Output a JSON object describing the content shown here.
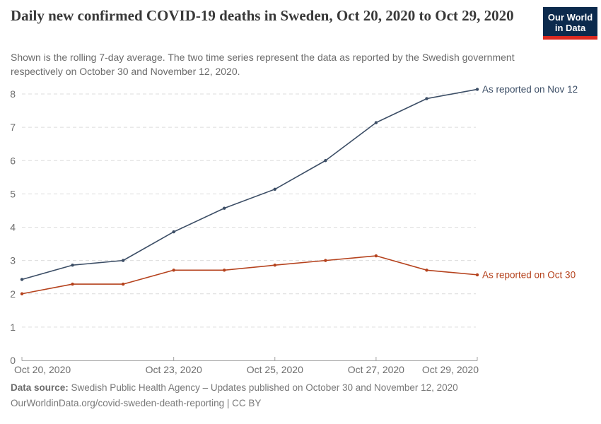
{
  "header": {
    "title": "Daily new confirmed COVID-19 deaths in Sweden, Oct 20, 2020 to Oct 29, 2020",
    "subtitle": "Shown is the rolling 7-day average. The two time series represent the data as reported by the Swedish government respectively on October 30 and November 12, 2020.",
    "logo": {
      "line1": "Our World",
      "line2": "in Data",
      "bg": "#0C2A4D",
      "stripe": "#DC2A20"
    }
  },
  "chart_data": {
    "type": "line",
    "title": "Daily new confirmed COVID-19 deaths in Sweden, Oct 20, 2020 to Oct 29, 2020",
    "x": [
      "Oct 20, 2020",
      "Oct 21, 2020",
      "Oct 22, 2020",
      "Oct 23, 2020",
      "Oct 24, 2020",
      "Oct 25, 2020",
      "Oct 26, 2020",
      "Oct 27, 2020",
      "Oct 28, 2020",
      "Oct 29, 2020"
    ],
    "series": [
      {
        "name": "As reported on Nov 12",
        "color": "#3C4E66",
        "values": [
          2.43,
          2.86,
          3.0,
          3.86,
          4.57,
          5.14,
          6.0,
          7.14,
          7.86,
          8.14
        ]
      },
      {
        "name": "As reported on Oct 30",
        "color": "#B5421D",
        "values": [
          2.0,
          2.29,
          2.29,
          2.71,
          2.71,
          2.86,
          3.0,
          3.14,
          2.71,
          2.57
        ]
      }
    ],
    "ylim": [
      0,
      8
    ],
    "yticks": [
      0,
      1,
      2,
      3,
      4,
      5,
      6,
      7,
      8
    ],
    "xtick_indices": [
      0,
      3,
      5,
      7,
      9
    ],
    "grid": "horizontal-dashed",
    "legend_position": "end-of-line-labels",
    "axis_color": "#a3a3a3",
    "grid_color": "#dcdcdc",
    "tick_label_color": "#6e6e6e"
  },
  "footer": {
    "source_label": "Data source:",
    "source_text": " Swedish Public Health Agency – Updates published on October 30 and November 12, 2020",
    "link_line": "OurWorldinData.org/covid-sweden-death-reporting | CC BY"
  }
}
